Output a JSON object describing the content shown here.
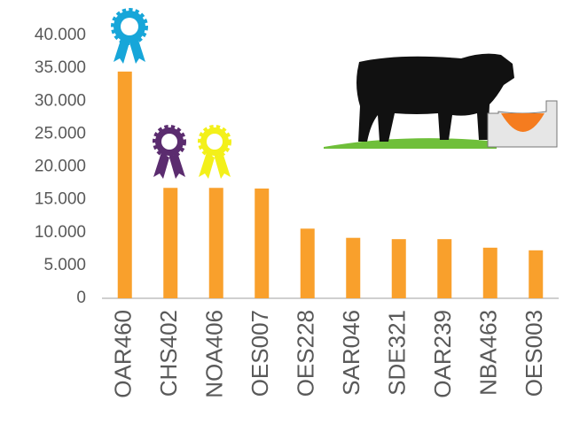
{
  "chart_data": {
    "type": "bar",
    "categories": [
      "OAR460",
      "CHS402",
      "NOA406",
      "OES007",
      "OES228",
      "SAR046",
      "SDE321",
      "OAR239",
      "NBA463",
      "OES003"
    ],
    "values": [
      34500,
      16800,
      16800,
      16700,
      10600,
      9200,
      9000,
      9000,
      7700,
      7300
    ],
    "color": "#f9a02c",
    "ylim": [
      0,
      40000
    ],
    "yticks": [
      0,
      {
        "value": 5000,
        "label": "5.000"
      },
      {
        "value": 10000,
        "label": "10.000"
      },
      {
        "value": 15000,
        "label": "15.000"
      },
      {
        "value": 20000,
        "label": "20.000"
      },
      {
        "value": 25000,
        "label": "25.000"
      },
      {
        "value": 30000,
        "label": "30.000"
      },
      {
        "value": 35000,
        "label": "35.000"
      },
      {
        "value": 40000,
        "label": "40.000"
      }
    ],
    "grid": false
  }
}
